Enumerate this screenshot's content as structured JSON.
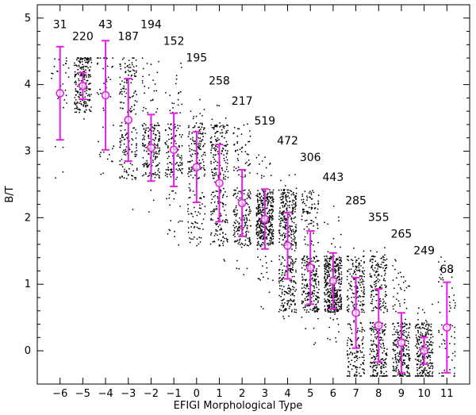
{
  "chart_data": {
    "type": "scatter",
    "title": "",
    "xlabel": "EFIGI Morphological Type",
    "ylabel": "B/T",
    "xlim": [
      -7,
      12
    ],
    "ylim": [
      -0.5,
      5.2
    ],
    "x_ticks": [
      "−6",
      "−5",
      "−4",
      "−3",
      "−2",
      "−1",
      "0",
      "1",
      "2",
      "3",
      "4",
      "5",
      "6",
      "7",
      "8",
      "9",
      "10",
      "11"
    ],
    "y_ticks": [
      "0",
      "1",
      "2",
      "3",
      "4",
      "5"
    ],
    "grid": false,
    "legend": "none",
    "colors": {
      "points": "#000000",
      "mean_marker": "#e020e0"
    },
    "series": [
      {
        "types": [
          -6,
          -5,
          -4,
          -3,
          -2,
          -1,
          0,
          1,
          2,
          3,
          4,
          5,
          6,
          7,
          8,
          9,
          10,
          11
        ],
        "mean": [
          3.87,
          3.98,
          3.84,
          3.47,
          3.05,
          3.02,
          2.76,
          2.52,
          2.22,
          1.98,
          1.58,
          1.25,
          1.05,
          0.57,
          0.38,
          0.12,
          0.0,
          0.35
        ],
        "err": [
          0.7,
          0.2,
          0.82,
          0.62,
          0.5,
          0.55,
          0.53,
          0.58,
          0.5,
          0.45,
          0.5,
          0.55,
          0.42,
          0.53,
          0.55,
          0.45,
          0.2,
          0.68
        ]
      }
    ],
    "counts": [
      {
        "type": -6,
        "label": "31",
        "y": 4.85
      },
      {
        "type": -5,
        "label": "220",
        "y": 4.67
      },
      {
        "type": -4,
        "label": "43",
        "y": 4.85
      },
      {
        "type": -3,
        "label": "187",
        "y": 4.67
      },
      {
        "type": -2,
        "label": "194",
        "y": 4.85
      },
      {
        "type": -1,
        "label": "152",
        "y": 4.6
      },
      {
        "type": 0,
        "label": "195",
        "y": 4.35
      },
      {
        "type": 1,
        "label": "258",
        "y": 4.0
      },
      {
        "type": 2,
        "label": "217",
        "y": 3.7
      },
      {
        "type": 3,
        "label": "519",
        "y": 3.4
      },
      {
        "type": 4,
        "label": "472",
        "y": 3.1
      },
      {
        "type": 5,
        "label": "306",
        "y": 2.85
      },
      {
        "type": 6,
        "label": "443",
        "y": 2.55
      },
      {
        "type": 7,
        "label": "285",
        "y": 2.2
      },
      {
        "type": 8,
        "label": "355",
        "y": 1.95
      },
      {
        "type": 9,
        "label": "265",
        "y": 1.7
      },
      {
        "type": 10,
        "label": "249",
        "y": 1.45
      },
      {
        "type": 11,
        "label": "68",
        "y": 1.17
      }
    ]
  }
}
